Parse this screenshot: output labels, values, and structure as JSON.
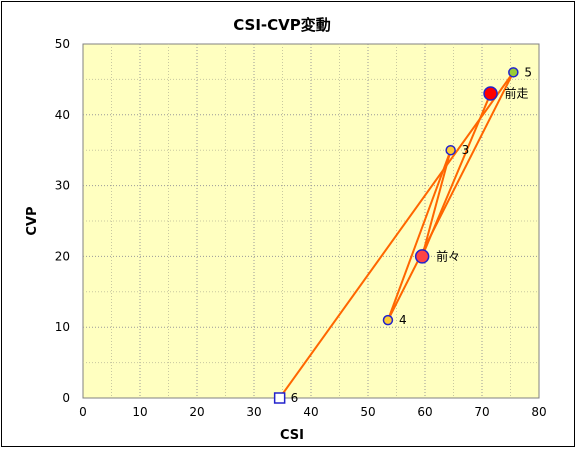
{
  "chart_data": {
    "type": "scatter",
    "title": "CSI-CVP変動",
    "xlabel": "CSI",
    "ylabel": "CVP",
    "xlim": [
      0,
      80
    ],
    "ylim": [
      0,
      50
    ],
    "xticks": [
      0,
      10,
      20,
      30,
      40,
      50,
      60,
      70,
      80
    ],
    "yticks": [
      0,
      10,
      20,
      30,
      40,
      50
    ],
    "grid": true,
    "plot_background": "#ffffc0",
    "line_color": "#ff6600",
    "path_order": [
      "前走",
      "前々",
      "3",
      "4",
      "5",
      "6"
    ],
    "points": [
      {
        "label": "前走",
        "x": 71.5,
        "y": 43,
        "marker": "circle-large",
        "fill": "#ff0000",
        "stroke": "#2222cc"
      },
      {
        "label": "前々",
        "x": 59.5,
        "y": 20,
        "marker": "circle-large",
        "fill": "#ff4444",
        "stroke": "#2222cc"
      },
      {
        "label": "3",
        "x": 64.5,
        "y": 35,
        "marker": "circle",
        "fill": "#ffcc33",
        "stroke": "#2222cc"
      },
      {
        "label": "4",
        "x": 53.5,
        "y": 11,
        "marker": "circle",
        "fill": "#ffcc33",
        "stroke": "#2222cc"
      },
      {
        "label": "5",
        "x": 75.5,
        "y": 46,
        "marker": "circle",
        "fill": "#99cc33",
        "stroke": "#2222cc"
      },
      {
        "label": "6",
        "x": 34.5,
        "y": 0,
        "marker": "square",
        "fill": "#ffffff",
        "stroke": "#2222cc"
      }
    ]
  }
}
